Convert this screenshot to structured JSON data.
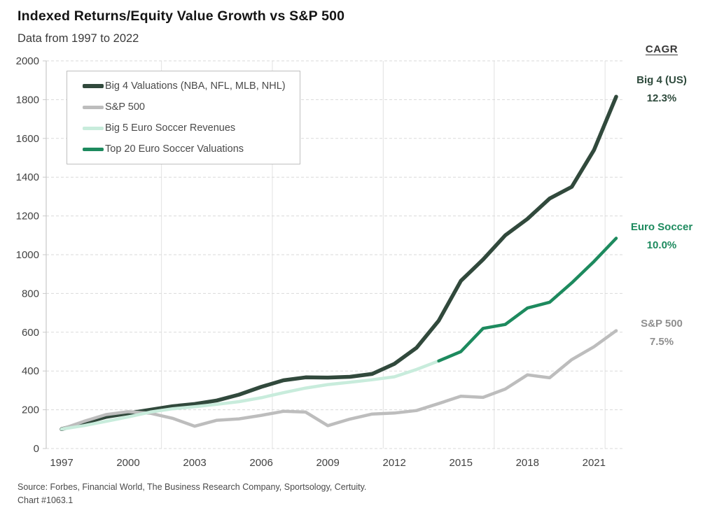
{
  "header": {
    "title": "Indexed Returns/Equity Value Growth vs S&P 500",
    "subtitle": "Data from 1997 to 2022"
  },
  "cagr_panel": {
    "header": "CAGR",
    "entries": [
      {
        "id": "big4",
        "label": "Big 4 (US)",
        "value": "12.3%",
        "color": "#2e4a3c"
      },
      {
        "id": "euro",
        "label": "Euro Soccer",
        "value": "10.0%",
        "color": "#1d8a5e"
      },
      {
        "id": "sp500",
        "label": "S&P 500",
        "value": "7.5%",
        "color": "#8f8f8f"
      }
    ]
  },
  "footer": {
    "source": "Source: Forbes, Financial World, The Business Research Company, Sportsology, Certuity.",
    "chart_id": "Chart #1063.1"
  },
  "chart_data": {
    "type": "line",
    "title": "Indexed Returns/Equity Value Growth vs S&P 500",
    "subtitle": "Data from 1997 to 2022",
    "xlabel": "",
    "ylabel": "",
    "xlim": [
      1997,
      2022.3
    ],
    "ylim": [
      0,
      2000
    ],
    "x_ticks": [
      1997,
      2000,
      2003,
      2006,
      2009,
      2012,
      2015,
      2018,
      2021
    ],
    "y_ticks": [
      0,
      200,
      400,
      600,
      800,
      1000,
      1200,
      1400,
      1600,
      1800,
      2000
    ],
    "grid_vertical_at": [
      2001.5,
      2006.5,
      2011.5,
      2016.5,
      2021.5
    ],
    "legend_position": "top-left",
    "index_base": 100,
    "series": [
      {
        "name": "Big 4 Valuations (NBA, NFL, MLB, NHL)",
        "color": "#31493c",
        "width": 5.5,
        "x": [
          1997,
          1998,
          1999,
          2000,
          2001,
          2002,
          2003,
          2004,
          2005,
          2006,
          2007,
          2008,
          2009,
          2010,
          2011,
          2012,
          2013,
          2014,
          2015,
          2016,
          2017,
          2018,
          2019,
          2020,
          2021,
          2022
        ],
        "values": [
          100,
          132,
          163,
          182,
          200,
          218,
          230,
          248,
          278,
          318,
          352,
          367,
          366,
          370,
          385,
          437,
          520,
          660,
          865,
          975,
          1100,
          1185,
          1290,
          1350,
          1540,
          1815
        ]
      },
      {
        "name": "S&P 500",
        "color": "#bdbdbd",
        "width": 4.5,
        "x": [
          1997,
          1998,
          1999,
          2000,
          2001,
          2002,
          2003,
          2004,
          2005,
          2006,
          2007,
          2008,
          2009,
          2010,
          2011,
          2012,
          2013,
          2014,
          2015,
          2016,
          2017,
          2018,
          2019,
          2020,
          2021,
          2022
        ],
        "values": [
          100,
          140,
          175,
          190,
          182,
          156,
          115,
          146,
          153,
          171,
          192,
          188,
          118,
          152,
          178,
          183,
          196,
          232,
          270,
          264,
          307,
          380,
          365,
          459,
          525,
          608
        ]
      },
      {
        "name": "Big 5 Euro Soccer Revenues",
        "color": "#c8ecdc",
        "width": 4.5,
        "x": [
          1997,
          1998,
          1999,
          2000,
          2001,
          2002,
          2003,
          2004,
          2005,
          2006,
          2007,
          2008,
          2009,
          2010,
          2011,
          2012,
          2013,
          2014
        ],
        "values": [
          100,
          118,
          140,
          163,
          188,
          205,
          216,
          228,
          242,
          262,
          288,
          312,
          330,
          342,
          355,
          370,
          408,
          452
        ]
      },
      {
        "name": "Top 20 Euro Soccer Valuations",
        "color": "#1d8a5e",
        "width": 4.5,
        "x": [
          2014,
          2015,
          2016,
          2017,
          2018,
          2019,
          2020,
          2021,
          2022
        ],
        "values": [
          452,
          500,
          620,
          640,
          725,
          755,
          855,
          965,
          1085
        ]
      }
    ]
  }
}
